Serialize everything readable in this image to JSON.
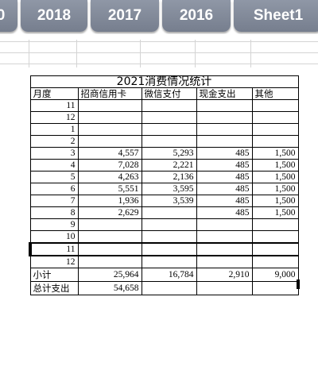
{
  "tabs": [
    "0",
    "2018",
    "2017",
    "2016",
    "Sheet1"
  ],
  "ledger": {
    "title": "2021消费情况统计",
    "headers": [
      "月度",
      "招商信用卡",
      "微信支付",
      "现金支出",
      "其他"
    ],
    "rows": [
      {
        "month": "11",
        "cmb": "",
        "wechat": "",
        "cash": "",
        "other": ""
      },
      {
        "month": "12",
        "cmb": "",
        "wechat": "",
        "cash": "",
        "other": ""
      },
      {
        "month": "1",
        "cmb": "",
        "wechat": "",
        "cash": "",
        "other": ""
      },
      {
        "month": "2",
        "cmb": "",
        "wechat": "",
        "cash": "",
        "other": ""
      },
      {
        "month": "3",
        "cmb": "4,557",
        "wechat": "5,293",
        "cash": "485",
        "other": "1,500"
      },
      {
        "month": "4",
        "cmb": "7,028",
        "wechat": "2,221",
        "cash": "485",
        "other": "1,500"
      },
      {
        "month": "5",
        "cmb": "4,263",
        "wechat": "2,136",
        "cash": "485",
        "other": "1,500"
      },
      {
        "month": "6",
        "cmb": "5,551",
        "wechat": "3,595",
        "cash": "485",
        "other": "1,500"
      },
      {
        "month": "7",
        "cmb": "1,936",
        "wechat": "3,539",
        "cash": "485",
        "other": "1,500"
      },
      {
        "month": "8",
        "cmb": "2,629",
        "wechat": "",
        "cash": "485",
        "other": "1,500"
      },
      {
        "month": "9",
        "cmb": "",
        "wechat": "",
        "cash": "",
        "other": ""
      },
      {
        "month": "10",
        "cmb": "",
        "wechat": "",
        "cash": "",
        "other": ""
      },
      {
        "month": "11",
        "cmb": "",
        "wechat": "",
        "cash": "",
        "other": ""
      },
      {
        "month": "12",
        "cmb": "",
        "wechat": "",
        "cash": "",
        "other": ""
      }
    ],
    "subtotal": {
      "label": "小计",
      "cmb": "25,964",
      "wechat": "16,784",
      "cash": "2,910",
      "other": "9,000"
    },
    "total": {
      "label": "总计支出",
      "cmb": "54,658",
      "wechat": "",
      "cash": "",
      "other": ""
    }
  }
}
